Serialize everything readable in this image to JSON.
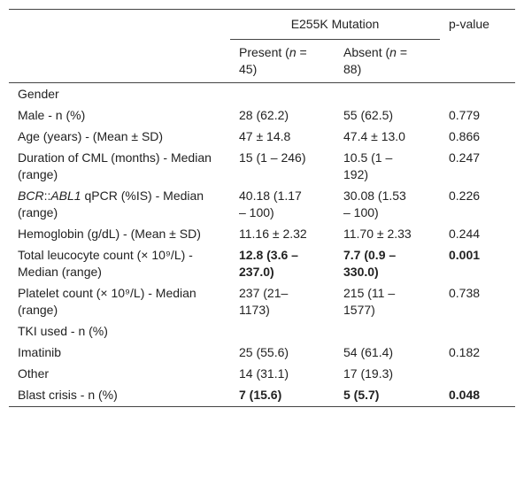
{
  "table": {
    "header": {
      "group": "E255K Mutation",
      "pvalue": "p-value",
      "columns": [
        [
          {
            "text": "Present ("
          },
          {
            "text": "n",
            "italic": true
          },
          {
            "text": " = 45)"
          }
        ],
        [
          {
            "text": "Absent ("
          },
          {
            "text": "n",
            "italic": true
          },
          {
            "text": " = 88)"
          }
        ]
      ]
    },
    "rows": [
      {
        "label": [
          {
            "text": "Gender"
          }
        ]
      },
      {
        "label": [
          {
            "text": "Male - n (%)"
          }
        ],
        "cells": [
          "28 (62.2)",
          "55 (62.5)",
          "0.779"
        ]
      },
      {
        "label": [
          {
            "text": "Age (years) - (Mean ± SD)"
          }
        ],
        "cells": [
          "47 ± 14.8",
          "47.4 ± 13.0",
          "0.866"
        ]
      },
      {
        "label": [
          {
            "text": "Duration of CML (months) - Median (range)"
          }
        ],
        "cells": [
          "15 (1 – 246)",
          "10.5 (1 – 192)",
          "0.247"
        ]
      },
      {
        "label": [
          {
            "text": "BCR",
            "italic": true
          },
          {
            "text": "::"
          },
          {
            "text": "ABL1",
            "italic": true
          },
          {
            "text": " qPCR (%IS) - Median (range)"
          }
        ],
        "cells": [
          "40.18 (1.17 – 100)",
          "30.08 (1.53 – 100)",
          "0.226"
        ]
      },
      {
        "label": [
          {
            "text": "Hemoglobin (g/dL) - (Mean ± SD)"
          }
        ],
        "cells": [
          "11.16 ± 2.32",
          "11.70 ± 2.33",
          "0.244"
        ]
      },
      {
        "label": [
          {
            "text": "Total leucocyte count (× 10⁹/L) - Median (range)"
          }
        ],
        "cells": [
          "12.8 (3.6 – 237.0)",
          "7.7 (0.9 – 330.0)",
          "0.001"
        ],
        "bold": true
      },
      {
        "label": [
          {
            "text": "Platelet count (× 10⁹/L) - Median (range)"
          }
        ],
        "cells": [
          "237 (21– 1173)",
          "215 (11 – 1577)",
          "0.738"
        ]
      },
      {
        "label": [
          {
            "text": "TKI used - n (%)"
          }
        ]
      },
      {
        "label": [
          {
            "text": "Imatinib"
          }
        ],
        "cells": [
          "25 (55.6)",
          "54 (61.4)",
          "0.182"
        ]
      },
      {
        "label": [
          {
            "text": "Other"
          }
        ],
        "cells": [
          "14 (31.1)",
          "17 (19.3)"
        ]
      },
      {
        "label": [
          {
            "text": "Blast crisis - n (%)"
          }
        ],
        "cells": [
          "7 (15.6)",
          "5 (5.7)",
          "0.048"
        ],
        "bold": true
      }
    ]
  }
}
